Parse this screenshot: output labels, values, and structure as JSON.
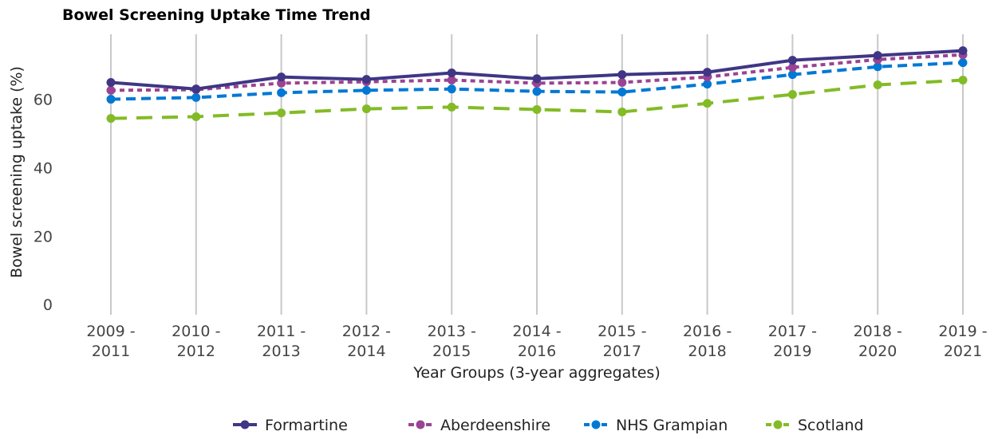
{
  "chart_data": {
    "type": "line",
    "title": "Bowel Screening Uptake Time Trend",
    "x_label": "Year Groups (3-year aggregates)",
    "y_label": "Bowel screening uptake (%)",
    "categories": [
      "2009 - 2011",
      "2010 - 2012",
      "2011 - 2013",
      "2012 - 2014",
      "2013 - 2015",
      "2014 - 2016",
      "2015 - 2017",
      "2016 - 2018",
      "2017 - 2019",
      "2018 - 2020",
      "2019 - 2021"
    ],
    "series": [
      {
        "name": "Formartine",
        "color": "#3f3685",
        "dash": "solid",
        "values": [
          64.9,
          63.0,
          66.5,
          65.8,
          67.7,
          66.0,
          67.2,
          67.9,
          71.4,
          72.8,
          74.2
        ]
      },
      {
        "name": "Aberdeenshire",
        "color": "#9b4393",
        "dash": "dotted",
        "values": [
          62.6,
          62.8,
          64.7,
          65.1,
          65.6,
          64.7,
          64.9,
          66.5,
          69.3,
          71.6,
          73.0
        ]
      },
      {
        "name": "NHS Grampian",
        "color": "#0078d4",
        "dash": "dashed",
        "values": [
          60.0,
          60.5,
          61.9,
          62.6,
          63.0,
          62.3,
          62.1,
          64.4,
          67.2,
          69.5,
          70.7
        ]
      },
      {
        "name": "Scotland",
        "color": "#83bb26",
        "dash": "longdash",
        "values": [
          54.4,
          54.9,
          56.0,
          57.2,
          57.7,
          57.0,
          56.3,
          58.8,
          61.4,
          64.2,
          65.6
        ]
      }
    ],
    "ylim": [
      -3,
      79
    ],
    "yticks": [
      0,
      20,
      40,
      60
    ],
    "grid": "x",
    "legend": "bottom"
  }
}
